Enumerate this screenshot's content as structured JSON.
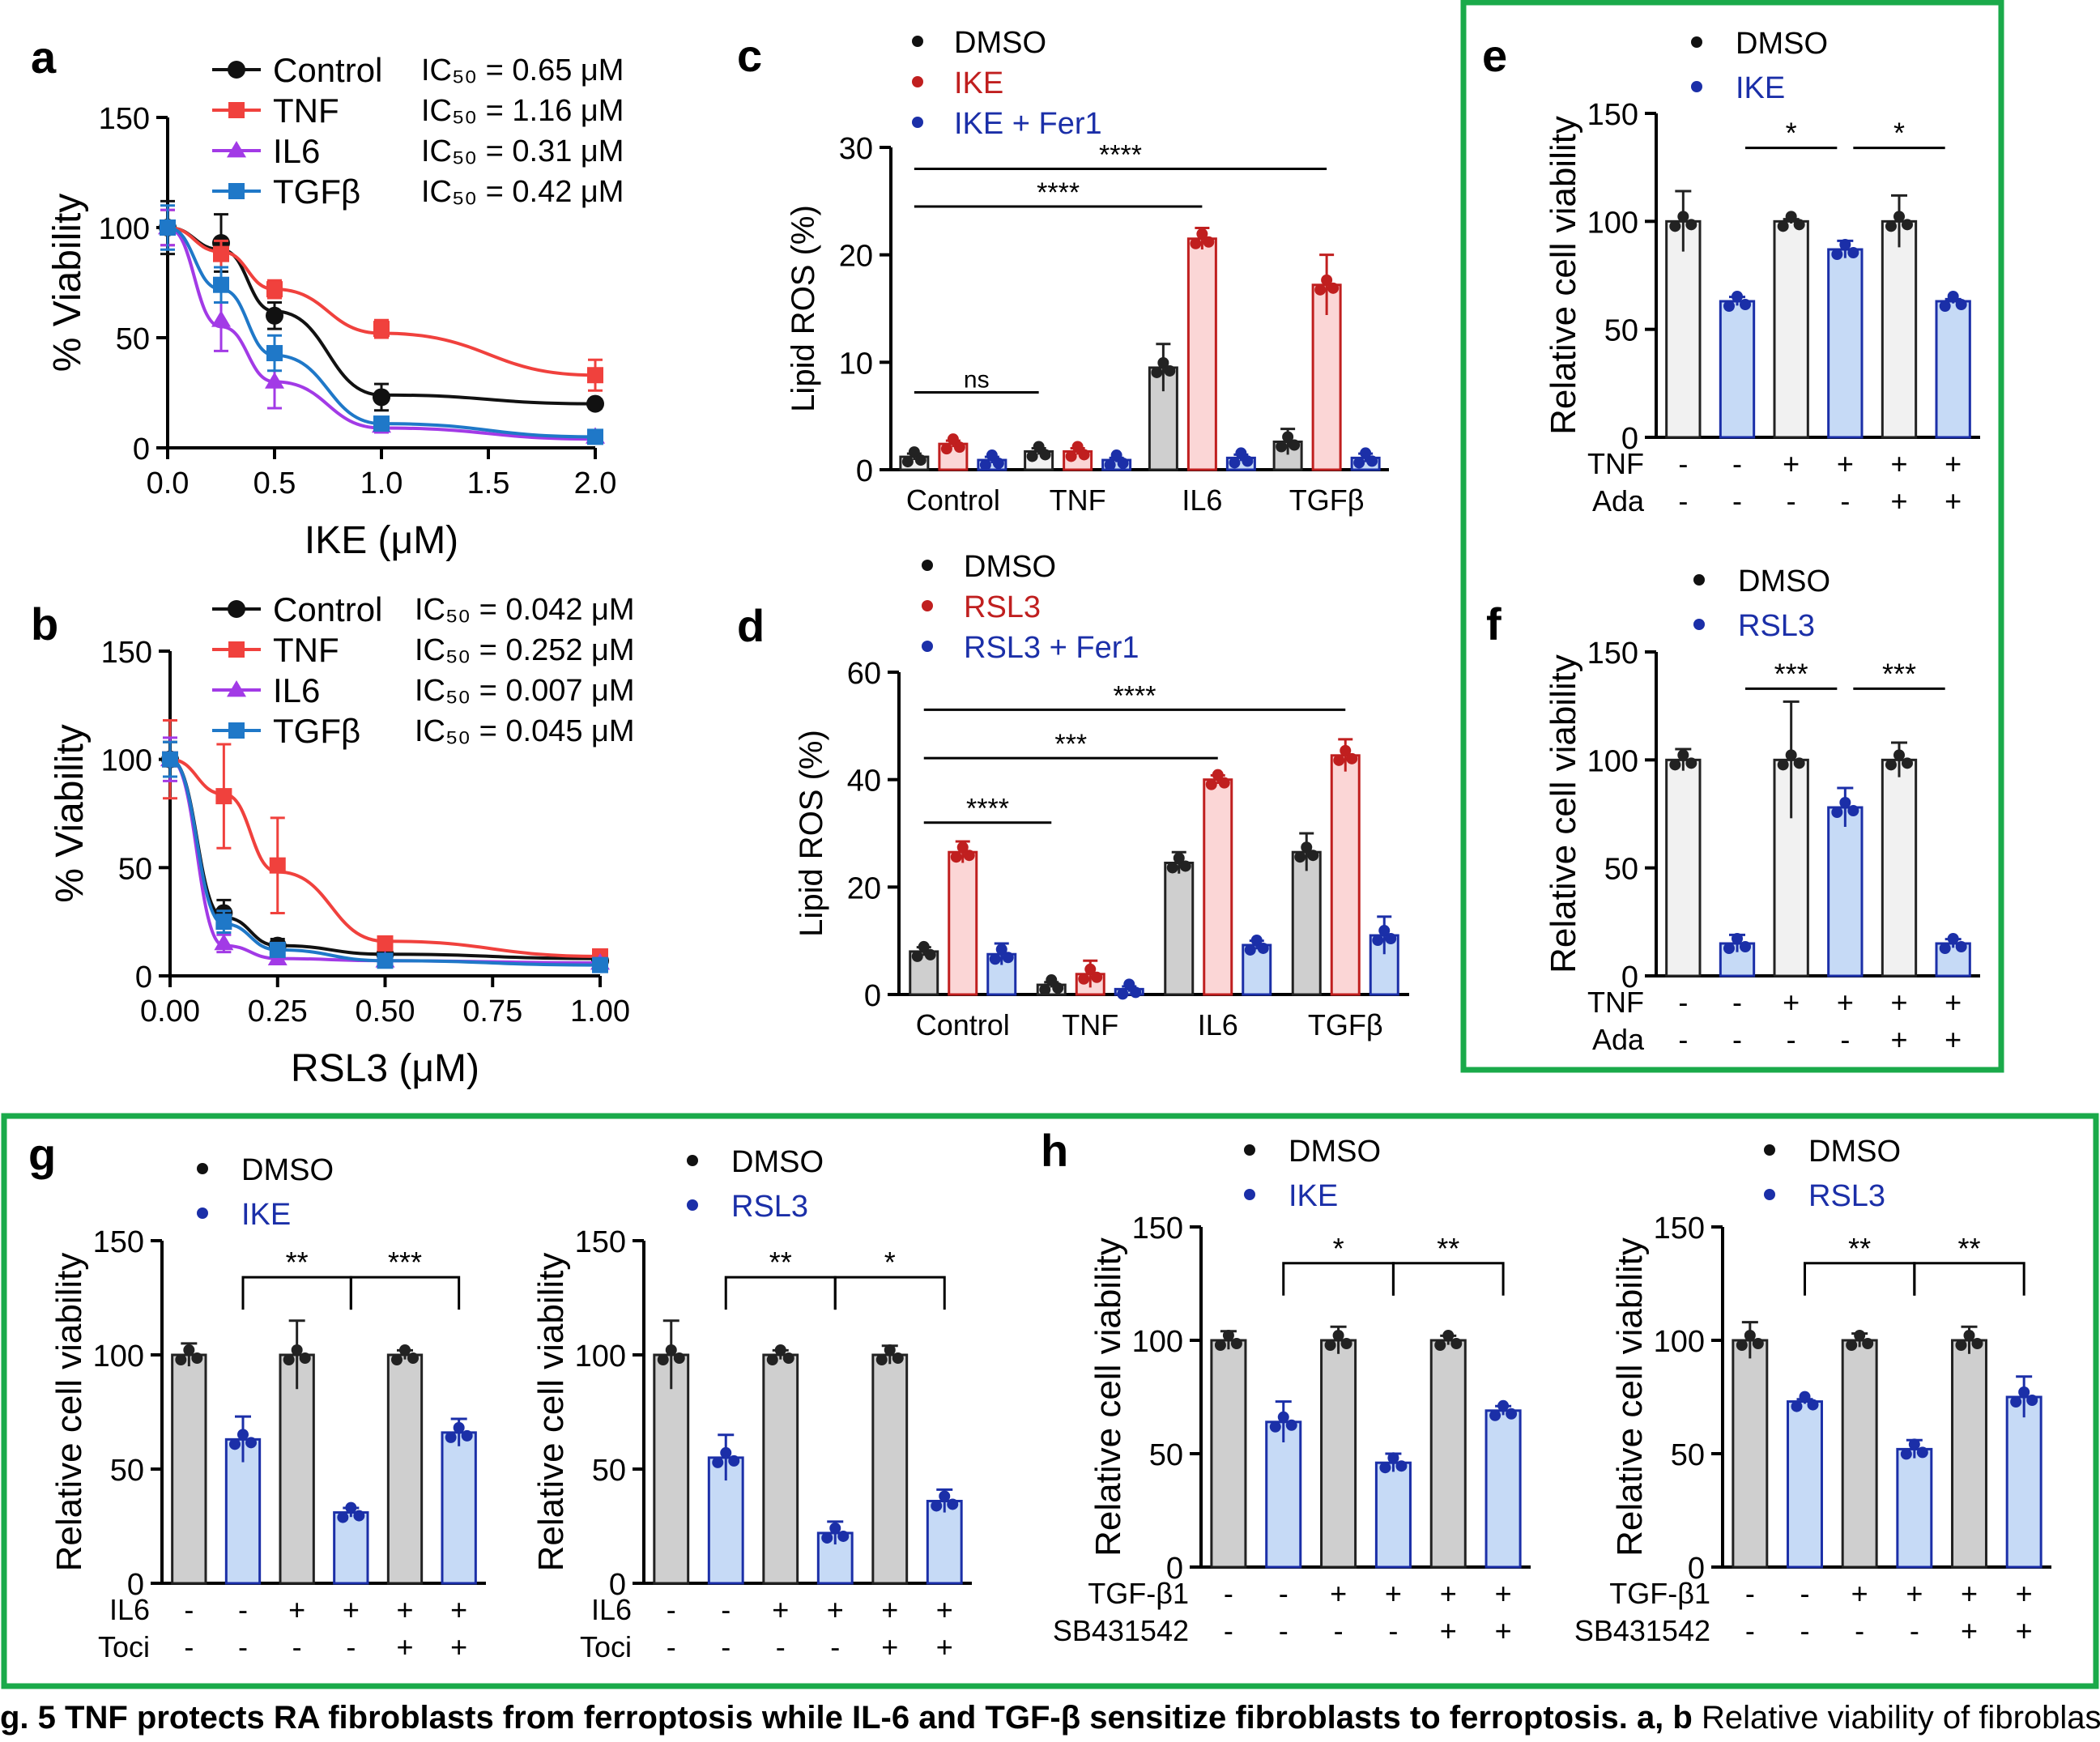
{
  "caption": {
    "bold": "g. 5 TNF protects RA fibroblasts from ferroptosis while IL-6 and TGF-β sensitize fibroblasts to ferroptosis. a, b",
    "rest": " Relative viability of fibroblasts deriv"
  },
  "colors": {
    "Control": "#111111",
    "TNF": "#f0413d",
    "IL6": "#a23ae6",
    "TGFb": "#1f78c8",
    "dmso_fill": "#f1f1f1",
    "dmso_fill_dark": "#cfcfcf",
    "red": "#c01f1f",
    "red_fill": "#fbd6d6",
    "blue": "#1b2fa8",
    "blue_fill": "#c6daf6",
    "box": "#1aaa4a"
  },
  "chart_data": [
    {
      "id": "a",
      "type": "line",
      "panel_label": "a",
      "xlabel": "IKE (μM)",
      "ylabel": "% Viability",
      "xlim": [
        0,
        2
      ],
      "ylim": [
        0,
        150
      ],
      "xticks": [
        "0.0",
        "0.5",
        "1.0",
        "1.5",
        "2.0"
      ],
      "yticks": [
        "0",
        "50",
        "100",
        "150"
      ],
      "x": [
        0,
        0.25,
        0.5,
        1.0,
        2.0
      ],
      "series": [
        {
          "name": "Control",
          "ic50": "IC₅₀ = 0.65 μM",
          "values": [
            100,
            93,
            60,
            23,
            20
          ],
          "err": [
            12,
            13,
            6,
            6,
            2
          ],
          "fit": [
            100,
            90,
            62,
            24,
            20
          ]
        },
        {
          "name": "TNF",
          "ic50": "IC₅₀ = 1.16 μM",
          "values": [
            100,
            88,
            72,
            54,
            33
          ],
          "err": [
            8,
            6,
            4,
            4,
            7
          ],
          "fit": [
            100,
            89,
            72,
            52,
            33
          ]
        },
        {
          "name": "IL6",
          "ic50": "IC₅₀ = 0.31 μM",
          "values": [
            100,
            58,
            30,
            10,
            5
          ],
          "err": [
            8,
            14,
            12,
            3,
            2
          ],
          "fit": [
            100,
            55,
            30,
            9,
            4
          ]
        },
        {
          "name": "TGFβ",
          "ic50": "IC₅₀ = 0.42 μM",
          "values": [
            100,
            74,
            43,
            11,
            5
          ],
          "err": [
            10,
            8,
            8,
            3,
            2
          ],
          "fit": [
            100,
            72,
            42,
            11,
            5
          ]
        }
      ]
    },
    {
      "id": "b",
      "type": "line",
      "panel_label": "b",
      "xlabel": "RSL3 (μM)",
      "ylabel": "% Viability",
      "xlim": [
        0,
        1
      ],
      "ylim": [
        0,
        150
      ],
      "xticks": [
        "0.00",
        "0.25",
        "0.50",
        "0.75",
        "1.00"
      ],
      "yticks": [
        "0",
        "50",
        "100",
        "150"
      ],
      "x": [
        0,
        0.125,
        0.25,
        0.5,
        1.0
      ],
      "series": [
        {
          "name": "Control",
          "ic50": "IC₅₀ = 0.042 μM",
          "values": [
            100,
            29,
            14,
            10,
            7
          ],
          "err": [
            8,
            6,
            3,
            2,
            2
          ],
          "fit": [
            100,
            27,
            14,
            10,
            8
          ]
        },
        {
          "name": "TNF",
          "ic50": "IC₅₀ = 0.252 μM",
          "values": [
            100,
            83,
            51,
            15,
            9
          ],
          "err": [
            18,
            24,
            22,
            3,
            2
          ],
          "fit": [
            100,
            84,
            48,
            16,
            9
          ]
        },
        {
          "name": "IL6",
          "ic50": "IC₅₀ = 0.007 μM",
          "values": [
            100,
            15,
            8,
            7,
            6
          ],
          "err": [
            10,
            4,
            2,
            2,
            2
          ],
          "fit": [
            100,
            14,
            8,
            7,
            6
          ]
        },
        {
          "name": "TGFβ",
          "ic50": "IC₅₀ = 0.045 μM",
          "values": [
            100,
            25,
            12,
            7,
            5
          ],
          "err": [
            8,
            5,
            3,
            2,
            2
          ],
          "fit": [
            100,
            24,
            12,
            7,
            5
          ]
        }
      ]
    },
    {
      "id": "c",
      "type": "bar",
      "panel_label": "c",
      "ylabel": "Lipid ROS (%)",
      "ylim": [
        0,
        30
      ],
      "yticks": [
        "0",
        "10",
        "20",
        "30"
      ],
      "categories": [
        "Control",
        "TNF",
        "IL6",
        "TGFβ"
      ],
      "legend": [
        {
          "name": "DMSO",
          "color": "#111111"
        },
        {
          "name": "IKE",
          "color": "#c01f1f"
        },
        {
          "name": "IKE + Fer1",
          "color": "#1b2fa8"
        }
      ],
      "series": [
        {
          "name": "DMSO",
          "values": [
            1.2,
            1.7,
            9.5,
            2.6
          ],
          "err": [
            0.3,
            0.3,
            2.2,
            1.2
          ]
        },
        {
          "name": "IKE",
          "values": [
            2.4,
            1.7,
            21.5,
            17.2
          ],
          "err": [
            0.3,
            0.3,
            1.0,
            2.8
          ]
        },
        {
          "name": "IKE + Fer1",
          "values": [
            0.9,
            0.9,
            1.1,
            1.1
          ],
          "err": [
            0.3,
            0.2,
            0.3,
            0.4
          ]
        }
      ],
      "significance": [
        {
          "from": [
            0,
            0
          ],
          "to": [
            1,
            0
          ],
          "label": "ns",
          "y": 7.2
        },
        {
          "from": [
            0,
            0
          ],
          "to": [
            2,
            1
          ],
          "label": "****",
          "y": 24.5
        },
        {
          "from": [
            0,
            0
          ],
          "to": [
            3,
            1
          ],
          "label": "****",
          "y": 28.0
        }
      ]
    },
    {
      "id": "d",
      "type": "bar",
      "panel_label": "d",
      "ylabel": "Lipid ROS (%)",
      "ylim": [
        0,
        60
      ],
      "yticks": [
        "0",
        "20",
        "40",
        "60"
      ],
      "categories": [
        "Control",
        "TNF",
        "IL6",
        "TGFβ"
      ],
      "legend": [
        {
          "name": "DMSO",
          "color": "#111111"
        },
        {
          "name": "RSL3",
          "color": "#c01f1f"
        },
        {
          "name": "RSL3 + Fer1",
          "color": "#1b2fa8"
        }
      ],
      "series": [
        {
          "name": "DMSO",
          "values": [
            8,
            1.8,
            24.5,
            26.5
          ],
          "err": [
            0.8,
            0.5,
            2.0,
            3.5
          ]
        },
        {
          "name": "RSL3",
          "values": [
            26.5,
            3.8,
            40,
            44.5
          ],
          "err": [
            2.0,
            2.5,
            0.8,
            3.0
          ]
        },
        {
          "name": "RSL3 + Fer1",
          "values": [
            7.5,
            1.0,
            9.2,
            11.0
          ],
          "err": [
            2.0,
            0.5,
            0.8,
            3.5
          ]
        }
      ],
      "significance": [
        {
          "from": [
            0,
            0
          ],
          "to": [
            1,
            0
          ],
          "label": "****",
          "y": 32
        },
        {
          "from": [
            0,
            0
          ],
          "to": [
            2,
            1
          ],
          "label": "***",
          "y": 44
        },
        {
          "from": [
            0,
            0
          ],
          "to": [
            3,
            1
          ],
          "label": "****",
          "y": 53
        }
      ]
    },
    {
      "id": "e",
      "type": "bar",
      "panel_label": "e",
      "ylabel": "Relative cell viability",
      "ylim": [
        0,
        150
      ],
      "yticks": [
        "0",
        "50",
        "100",
        "150"
      ],
      "legend": [
        {
          "name": "DMSO",
          "color": "#111111"
        },
        {
          "name": "IKE",
          "color": "#1b2fa8"
        }
      ],
      "values": [
        100,
        63,
        100,
        87,
        100,
        63
      ],
      "err": [
        14,
        2,
        1,
        4,
        12,
        1
      ],
      "conditions": [
        {
          "name": "TNF",
          "signs": [
            "-",
            "-",
            "+",
            "+",
            "+",
            "+"
          ]
        },
        {
          "name": "Ada",
          "signs": [
            "-",
            "-",
            "-",
            "-",
            "+",
            "+"
          ]
        }
      ],
      "significance": [
        {
          "from": 1,
          "to": 3,
          "label": "*",
          "y": 134,
          "style": "line"
        },
        {
          "from": 3,
          "to": 5,
          "label": "*",
          "y": 134,
          "style": "line"
        }
      ]
    },
    {
      "id": "f",
      "type": "bar",
      "panel_label": "f",
      "ylabel": "Relative cell viability",
      "ylim": [
        0,
        150
      ],
      "yticks": [
        "0",
        "50",
        "100",
        "150"
      ],
      "legend": [
        {
          "name": "DMSO",
          "color": "#111111"
        },
        {
          "name": "RSL3",
          "color": "#1b2fa8"
        }
      ],
      "values": [
        100,
        15,
        100,
        78,
        100,
        15
      ],
      "err": [
        5,
        4,
        27,
        9,
        8,
        2
      ],
      "conditions": [
        {
          "name": "TNF",
          "signs": [
            "-",
            "-",
            "+",
            "+",
            "+",
            "+"
          ]
        },
        {
          "name": "Ada",
          "signs": [
            "-",
            "-",
            "-",
            "-",
            "+",
            "+"
          ]
        }
      ],
      "significance": [
        {
          "from": 1,
          "to": 3,
          "label": "***",
          "y": 133,
          "style": "line"
        },
        {
          "from": 3,
          "to": 5,
          "label": "***",
          "y": 133,
          "style": "line"
        }
      ]
    },
    {
      "id": "g1",
      "type": "bar",
      "panel_label": "g",
      "ylabel": "Relative cell viability",
      "ylim": [
        0,
        150
      ],
      "yticks": [
        "0",
        "50",
        "100",
        "150"
      ],
      "legend": [
        {
          "name": "DMSO",
          "color": "#111111"
        },
        {
          "name": "IKE",
          "color": "#1b2fa8"
        }
      ],
      "values": [
        100,
        63,
        100,
        31,
        100,
        66
      ],
      "err": [
        5,
        10,
        15,
        2,
        2,
        6
      ],
      "conditions": [
        {
          "name": "IL6",
          "signs": [
            "-",
            "-",
            "+",
            "+",
            "+",
            "+"
          ]
        },
        {
          "name": "Toci",
          "signs": [
            "-",
            "-",
            "-",
            "-",
            "+",
            "+"
          ]
        }
      ],
      "significance": [
        {
          "from": 1,
          "to": 3,
          "label": "**",
          "y": 134,
          "style": "bracket"
        },
        {
          "from": 3,
          "to": 5,
          "label": "***",
          "y": 134,
          "style": "bracket"
        }
      ]
    },
    {
      "id": "g2",
      "type": "bar",
      "panel_label": "",
      "ylabel": "Relative cell viability",
      "ylim": [
        0,
        150
      ],
      "yticks": [
        "0",
        "50",
        "100",
        "150"
      ],
      "legend": [
        {
          "name": "DMSO",
          "color": "#111111"
        },
        {
          "name": "RSL3",
          "color": "#1b2fa8"
        }
      ],
      "values": [
        100,
        55,
        100,
        22,
        100,
        36
      ],
      "err": [
        15,
        10,
        2,
        5,
        4,
        5
      ],
      "conditions": [
        {
          "name": "IL6",
          "signs": [
            "-",
            "-",
            "+",
            "+",
            "+",
            "+"
          ]
        },
        {
          "name": "Toci",
          "signs": [
            "-",
            "-",
            "-",
            "-",
            "+",
            "+"
          ]
        }
      ],
      "significance": [
        {
          "from": 1,
          "to": 3,
          "label": "**",
          "y": 134,
          "style": "bracket"
        },
        {
          "from": 3,
          "to": 5,
          "label": "*",
          "y": 134,
          "style": "bracket"
        }
      ]
    },
    {
      "id": "h1",
      "type": "bar",
      "panel_label": "h",
      "ylabel": "Relative cell viability",
      "ylim": [
        0,
        150
      ],
      "yticks": [
        "0",
        "50",
        "100",
        "150"
      ],
      "legend": [
        {
          "name": "DMSO",
          "color": "#111111"
        },
        {
          "name": "IKE",
          "color": "#1b2fa8"
        }
      ],
      "values": [
        100,
        64,
        100,
        46,
        100,
        69
      ],
      "err": [
        4,
        9,
        6,
        4,
        2,
        2
      ],
      "conditions": [
        {
          "name": "TGF-β1",
          "signs": [
            "-",
            "-",
            "+",
            "+",
            "+",
            "+"
          ]
        },
        {
          "name": "SB431542",
          "signs": [
            "-",
            "-",
            "-",
            "-",
            "+",
            "+"
          ]
        }
      ],
      "significance": [
        {
          "from": 1,
          "to": 3,
          "label": "*",
          "y": 134,
          "style": "bracket"
        },
        {
          "from": 3,
          "to": 5,
          "label": "**",
          "y": 134,
          "style": "bracket"
        }
      ]
    },
    {
      "id": "h2",
      "type": "bar",
      "panel_label": "",
      "ylabel": "Relative cell viability",
      "ylim": [
        0,
        150
      ],
      "yticks": [
        "0",
        "50",
        "100",
        "150"
      ],
      "legend": [
        {
          "name": "DMSO",
          "color": "#111111"
        },
        {
          "name": "RSL3",
          "color": "#1b2fa8"
        }
      ],
      "values": [
        100,
        73,
        100,
        52,
        100,
        75
      ],
      "err": [
        8,
        1,
        3,
        4,
        6,
        9
      ],
      "conditions": [
        {
          "name": "TGF-β1",
          "signs": [
            "-",
            "-",
            "+",
            "+",
            "+",
            "+"
          ]
        },
        {
          "name": "SB431542",
          "signs": [
            "-",
            "-",
            "-",
            "-",
            "+",
            "+"
          ]
        }
      ],
      "significance": [
        {
          "from": 1,
          "to": 3,
          "label": "**",
          "y": 134,
          "style": "bracket"
        },
        {
          "from": 3,
          "to": 5,
          "label": "**",
          "y": 134,
          "style": "bracket"
        }
      ]
    }
  ]
}
